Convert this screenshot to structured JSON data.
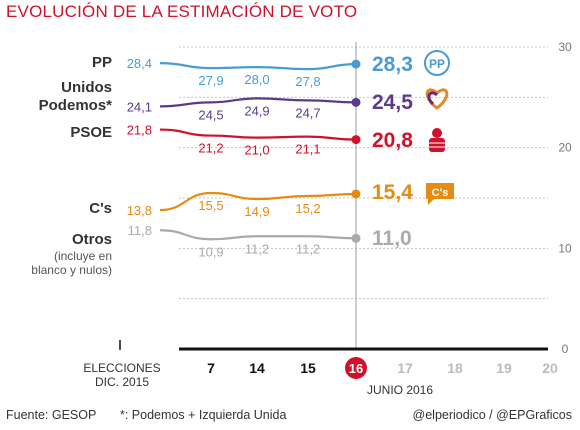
{
  "header": {
    "title": "EVOLUCIÓN DE LA ESTIMACIÓN DE VOTO"
  },
  "footer": {
    "source": "Fuente: GESOP",
    "note": "*: Podemos + Izquierda Unida",
    "credit": "@elperiodico / @EPGraficos"
  },
  "chart_data": {
    "type": "line",
    "title": "EVOLUCIÓN DE LA ESTIMACIÓN DE VOTO",
    "ylim": [
      0,
      30
    ],
    "yticks": [
      "0",
      "10",
      "20",
      "30"
    ],
    "x_ticks": [
      {
        "key": "e",
        "label": "ELECCIONES DIC. 2015",
        "lines": [
          "ELECCIONES",
          "DIC. 2015"
        ],
        "state": "past"
      },
      {
        "key": "7",
        "label": "7",
        "state": "past"
      },
      {
        "key": "14",
        "label": "14",
        "state": "past"
      },
      {
        "key": "15",
        "label": "15",
        "state": "past"
      },
      {
        "key": "16",
        "label": "16",
        "state": "current"
      },
      {
        "key": "17",
        "label": "17",
        "state": "future"
      },
      {
        "key": "18",
        "label": "18",
        "state": "future"
      },
      {
        "key": "19",
        "label": "19",
        "state": "future"
      },
      {
        "key": "20",
        "label": "20",
        "state": "future"
      }
    ],
    "month_label": "JUNIO 2016",
    "grid": true,
    "series": [
      {
        "name": "PP",
        "name_lines": [
          "PP"
        ],
        "color": "#4a9bd5",
        "party_icon": "pp-logo-icon",
        "icon_text": "PP",
        "values": [
          28.4,
          27.9,
          28.0,
          27.8,
          28.3
        ],
        "labels": [
          "28,4",
          "27,9",
          "28,0",
          "27,8",
          "28,3"
        ]
      },
      {
        "name": "Unidos Podemos*",
        "name_lines": [
          "Unidos",
          "Podemos*"
        ],
        "color": "#5b3a8a",
        "party_icon": "heart-icon",
        "values": [
          24.1,
          24.5,
          24.9,
          24.7,
          24.5
        ],
        "labels": [
          "24,1",
          "24,5",
          "24,9",
          "24,7",
          "24,5"
        ]
      },
      {
        "name": "PSOE",
        "name_lines": [
          "PSOE"
        ],
        "color": "#d0112b",
        "party_icon": "fist-rose-icon",
        "values": [
          21.8,
          21.2,
          21.0,
          21.1,
          20.8
        ],
        "labels": [
          "21,8",
          "21,2",
          "21,0",
          "21,1",
          "20,8"
        ]
      },
      {
        "name": "C's",
        "name_lines": [
          "C's"
        ],
        "color": "#e48b12",
        "party_icon": "cs-logo-icon",
        "icon_text": "C's",
        "values": [
          13.8,
          15.5,
          14.9,
          15.2,
          15.4
        ],
        "labels": [
          "13,8",
          "15,5",
          "14,9",
          "15,2",
          "15,4"
        ]
      },
      {
        "name": "Otros",
        "name_lines": [
          "Otros"
        ],
        "note_lines": [
          "(incluye en",
          "blanco y nulos)"
        ],
        "color": "#aaaaaa",
        "values": [
          11.8,
          10.9,
          11.2,
          11.2,
          11.0
        ],
        "labels": [
          "11,8",
          "10,9",
          "11,2",
          "11,2",
          "11,0"
        ]
      }
    ]
  }
}
